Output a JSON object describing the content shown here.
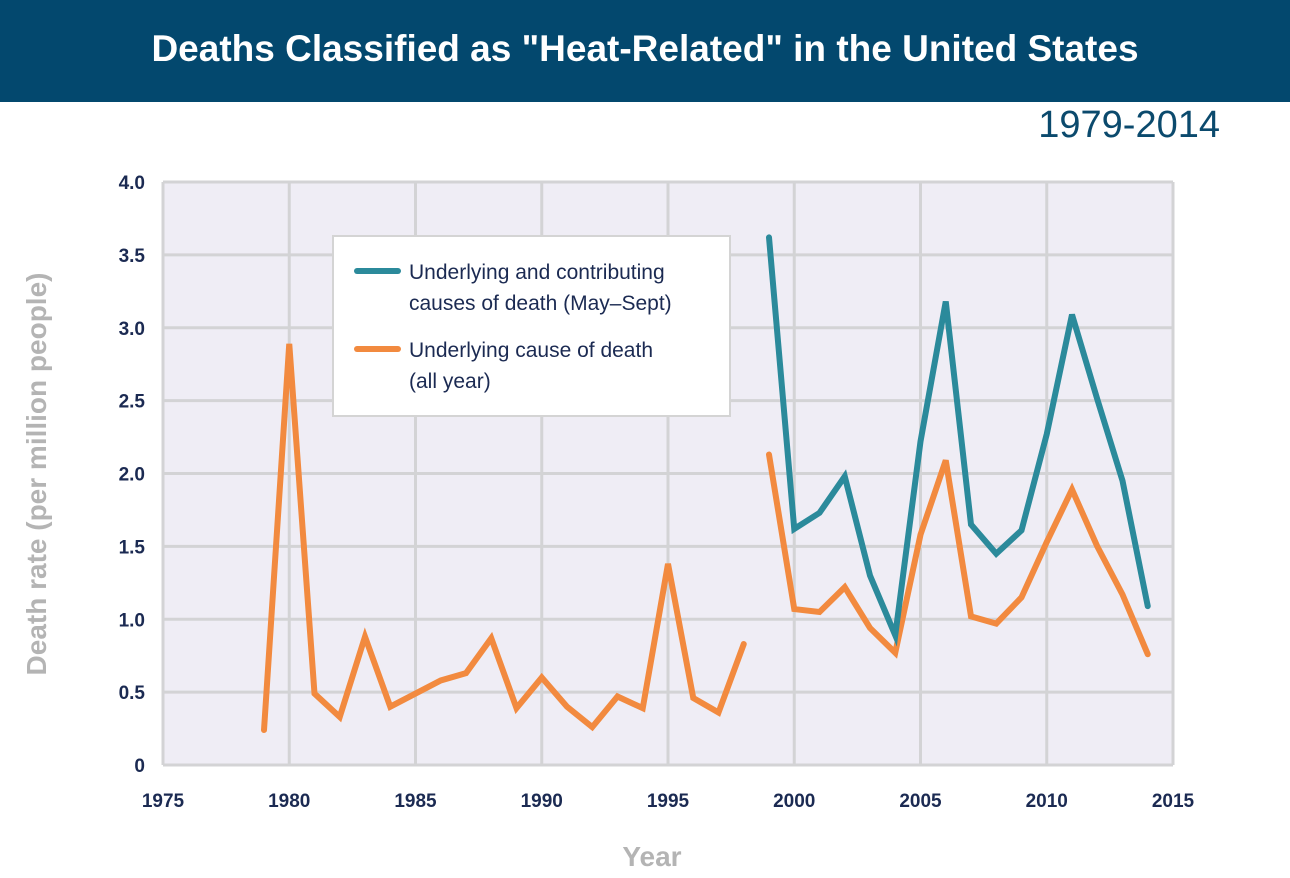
{
  "header": {
    "title": "Deaths Classified as \"Heat-Related\" in the United States",
    "subtitle": "1979-2014"
  },
  "chart_data": {
    "type": "line",
    "title": "Deaths Classified as \"Heat-Related\" in the United States",
    "subtitle": "1979-2014",
    "xlabel": "Year",
    "ylabel": "Death rate (per million people)",
    "xlim": [
      1975,
      2015
    ],
    "ylim": [
      0,
      4.0
    ],
    "xticks": [
      "1975",
      "1980",
      "1985",
      "1990",
      "1995",
      "2000",
      "2005",
      "2010",
      "2015"
    ],
    "yticks": [
      "0",
      "0.5",
      "1.0",
      "1.5",
      "2.0",
      "2.5",
      "3.0",
      "3.5",
      "4.0"
    ],
    "grid": true,
    "legend_position": "top-left",
    "series": [
      {
        "name": "Underlying and contributing causes of death (May–Sept)",
        "legend_lines": [
          "Underlying and contributing",
          "causes of death (May–Sept)"
        ],
        "color": "#2b8a9b",
        "x": [
          1999,
          2000,
          2001,
          2002,
          2003,
          2004,
          2005,
          2006,
          2007,
          2008,
          2009,
          2010,
          2011,
          2012,
          2013,
          2014
        ],
        "y": [
          3.62,
          1.62,
          1.73,
          1.98,
          1.3,
          0.89,
          2.22,
          3.18,
          1.65,
          1.45,
          1.61,
          2.27,
          3.09,
          2.51,
          1.95,
          1.09
        ]
      },
      {
        "name": "Underlying cause of death (all year)",
        "legend_lines": [
          "Underlying cause of death",
          "(all year)"
        ],
        "color": "#f28a3f",
        "x": [
          1979,
          1980,
          1981,
          1982,
          1983,
          1984,
          1985,
          1986,
          1987,
          1988,
          1989,
          1990,
          1991,
          1992,
          1993,
          1994,
          1995,
          1996,
          1997,
          1998,
          1999,
          2000,
          2001,
          2002,
          2003,
          2004,
          2005,
          2006,
          2007,
          2008,
          2009,
          2010,
          2011,
          2012,
          2013,
          2014
        ],
        "y": [
          0.24,
          2.89,
          0.49,
          0.33,
          0.88,
          0.4,
          0.49,
          0.58,
          0.63,
          0.87,
          0.39,
          0.6,
          0.4,
          0.26,
          0.47,
          0.39,
          1.38,
          0.46,
          0.36,
          0.83,
          2.13,
          1.07,
          1.05,
          1.22,
          0.94,
          0.77,
          1.58,
          2.09,
          1.02,
          0.97,
          1.15,
          1.53,
          1.89,
          1.5,
          1.17,
          0.76
        ]
      }
    ]
  }
}
